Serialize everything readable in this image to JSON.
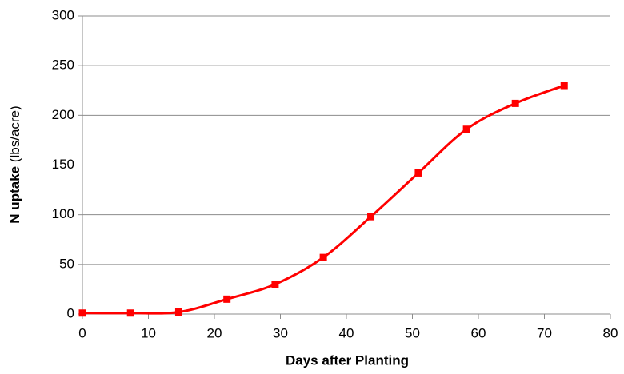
{
  "chart_data": {
    "type": "line",
    "xlabel": "Days after Planting",
    "ylabel": "N uptake",
    "ylabel_unit": "(lbs/acre)",
    "x": [
      0,
      7.3,
      14.6,
      21.9,
      29.2,
      36.5,
      43.7,
      50.9,
      58.2,
      65.6,
      73
    ],
    "series": [
      {
        "color": "#ff0000",
        "values": [
          1,
          1,
          2,
          15,
          30,
          57,
          98,
          142,
          186,
          212,
          230
        ]
      }
    ],
    "xlim": [
      0,
      80
    ],
    "xticks": [
      0,
      10,
      20,
      30,
      40,
      50,
      60,
      70,
      80
    ],
    "ylim": [
      0,
      300
    ],
    "yticks": [
      0,
      50,
      100,
      150,
      200,
      250,
      300
    ],
    "grid": true,
    "markers": true
  }
}
